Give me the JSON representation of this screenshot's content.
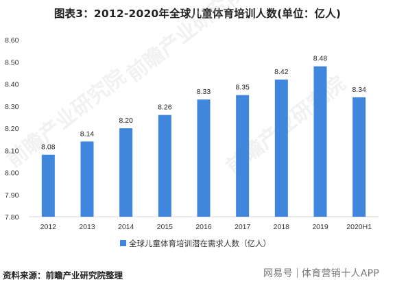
{
  "chart_data": {
    "type": "bar",
    "title": "图表3：2012-2020年全球儿童体育培训人数(单位：亿人)",
    "categories": [
      "2012",
      "2013",
      "2014",
      "2015",
      "2016",
      "2017",
      "2018",
      "2019",
      "2020H1"
    ],
    "series": [
      {
        "name": "全球儿童体育培训潜在需求人数（亿人）",
        "values": [
          8.08,
          8.14,
          8.2,
          8.26,
          8.33,
          8.35,
          8.42,
          8.48,
          8.34
        ],
        "labels": [
          "8.08",
          "8.14",
          "8.20",
          "8.26",
          "8.33",
          "8.35",
          "8.42",
          "8.48",
          "8.34"
        ]
      }
    ],
    "ylim": [
      7.8,
      8.6
    ],
    "yticks": [
      "7.80",
      "7.90",
      "8.00",
      "8.10",
      "8.20",
      "8.30",
      "8.40",
      "8.50",
      "8.60"
    ],
    "xlabel": "",
    "ylabel": "",
    "grid": false,
    "legend": "bottom",
    "bar_color": "#3f86dc"
  },
  "source_text": "资料来源：前瞻产业研究院整理",
  "watermark": {
    "left": "网易号",
    "right": "体育营销十人APP"
  },
  "background_watermark": "前瞻产业研究院"
}
